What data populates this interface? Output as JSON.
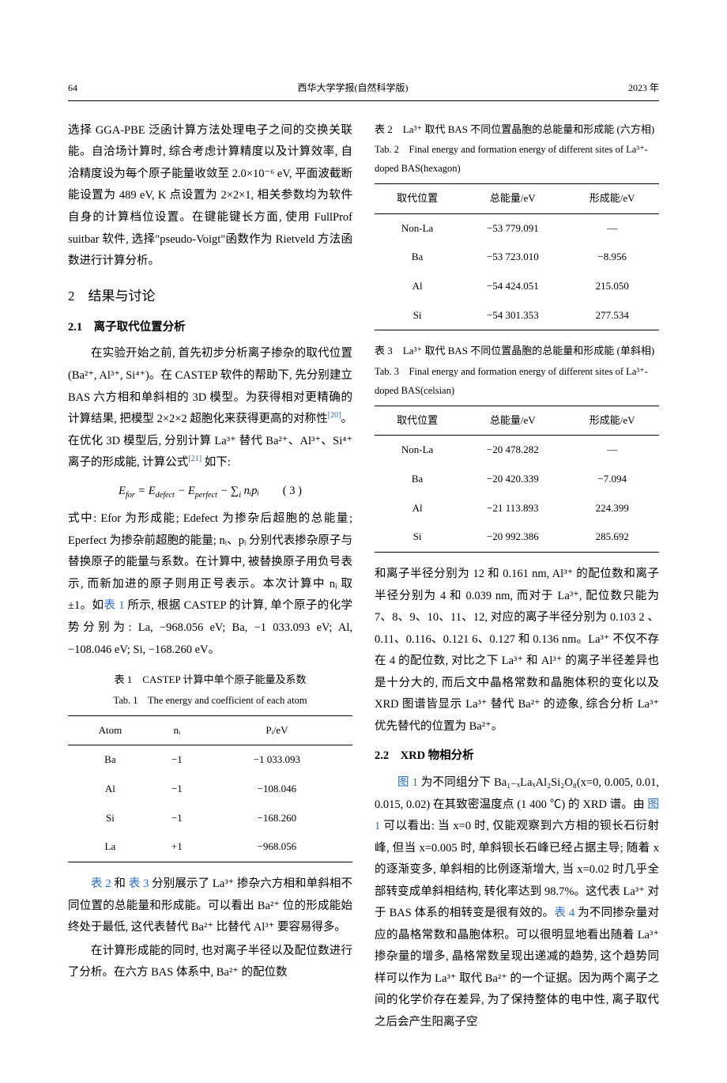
{
  "header": {
    "page_no": "64",
    "journal": "西华大学学报(自然科学版)",
    "year": "2023 年"
  },
  "left_col": {
    "p1": "选择 GGA-PBE 泛函计算方法处理电子之间的交换关联能。自洽场计算时, 综合考虑计算精度以及计算效率, 自洽精度设为每个原子能量收敛至 2.0×10⁻⁶ eV, 平面波截断能设置为 489 eV, K 点设置为 2×2×1, 相关参数均为软件自身的计算档位设置。在键能键长方面, 使用 FullProf suitbar 软件, 选择\"pseudo-Voigt\"函数作为 Rietveld 方法函数进行计算分析。",
    "sec2": "2　结果与讨论",
    "sec21": "2.1　离子取代位置分析",
    "p2a": "在实验开始之前, 首先初步分析离子掺杂的取代位置 (Ba²⁺, Al³⁺, Si⁴⁺)。在 CASTEP 软件的帮助下, 先分别建立 BAS 六方相和单斜相的 3D 模型。为获得相对更精确的计算结果, 把模型 2×2×2 超胞化来获得更高的对称性",
    "cite20": "[20]",
    "p2b": "。在优化 3D 模型后, 分别计算 La³⁺ 替代 Ba²⁺、Al³⁺、Si⁴⁺ 离子的形成能, 计算公式",
    "cite21": "[21]",
    "p2c": " 如下:",
    "eq_lhs": "E",
    "eq_sub_for": "for",
    "eq_eq": " = E",
    "eq_sub_defect": "defect",
    "eq_minus1": " − E",
    "eq_sub_perfect": "perfect",
    "eq_minus2": " − ∑",
    "eq_sub_i": "i",
    "eq_npi": " nᵢpᵢ",
    "eq_num": "( 3 )",
    "p3": "式中: Efor 为形成能; Edefect 为掺杂后超胞的总能量; Eperfect 为掺杂前超胞的能量; nᵢ、pᵢ 分别代表掺杂原子与替换原子的能量与系数。在计算中, 被替换原子用负号表示, 而新加进的原子则用正号表示。本次计算中 nᵢ 取 ±1。如",
    "tab1link": "表 1",
    "p3b": " 所示, 根据 CASTEP 的计算, 单个原子的化学势分别为: La,  −968.056 eV; Ba, −1 033.093 eV; Al, −108.046 eV; Si,  −168.260 eV。",
    "p4a": "",
    "tab2link": "表 2",
    "p4and": " 和 ",
    "tab3link": "表 3",
    "p4b": " 分别展示了 La³⁺ 掺杂六方相和单斜相不同位置的总能量和形成能。可以看出 Ba²⁺ 位的形成能始终处于最低, 这代表替代 Ba²⁺ 比替代 Al³⁺ 要容易得多。",
    "p5": "在计算形成能的同时, 也对离子半径以及配位数进行了分析。在六方 BAS 体系中, Ba²⁺ 的配位数"
  },
  "right_col": {
    "p1": "和离子半径分别为 12 和 0.161 nm, Al³⁺ 的配位数和离子半径分别为 4 和 0.039 nm, 而对于 La³⁺, 配位数只能为 7、8、9、10、11、12, 对应的离子半径分别为 0.103 2 、0.11、0.116、0.121 6、0.127 和 0.136 nm。La³⁺ 不仅不存在 4 的配位数, 对比之下 La³⁺ 和 Al³⁺ 的离子半径差异也是十分大的, 而后文中晶格常数和晶胞体积的变化以及 XRD 图谱皆显示 La³⁺ 替代 Ba²⁺ 的迹象, 综合分析 La³⁺ 优先替代的位置为 Ba²⁺。",
    "sec22": "2.2　XRD 物相分析",
    "p2a": "",
    "fig1link_a": "图 1",
    "p2b": " 为不同组分下 Ba₁₋ₓLaₓAl₂Si₂O₈(x=0, 0.005, 0.01, 0.015, 0.02) 在其致密温度点 (1 400 ℃) 的 XRD 谱。由 ",
    "fig1link_b": "图 1",
    "p2c": " 可以看出: 当 x=0 时, 仅能观察到六方相的钡长石衍射峰, 但当 x=0.005 时, 单斜钡长石峰已经占据主导; 随着 x 的逐渐变多, 单斜相的比例逐渐增大, 当 x=0.02 时几乎全部转变成单斜相结构, 转化率达到 98.7%。这代表 La³⁺ 对于 BAS 体系的相转变是很有效的。",
    "tab4link": "表 4",
    "p2d": " 为不同掺杂量对应的晶格常数和晶胞体积。可以很明显地看出随着 La³⁺ 掺杂量的增多, 晶格常数呈现出递减的趋势, 这个趋势同样可以作为 La³⁺ 取代 Ba²⁺ 的一个证据。因为两个离子之间的化学价存在差异, 为了保持整体的电中性, 离子取代之后会产生阳离子空"
  },
  "table1": {
    "title_cn": "表 1　CASTEP 计算中单个原子能量及系数",
    "title_en": "Tab. 1　The energy and coefficient of each atom",
    "cols": [
      "Atom",
      "nᵢ",
      "Pᵢ/eV"
    ],
    "rows": [
      [
        "Ba",
        "−1",
        "−1 033.093"
      ],
      [
        "Al",
        "−1",
        "−108.046"
      ],
      [
        "Si",
        "−1",
        "−168.260"
      ],
      [
        "La",
        "+1",
        "−968.056"
      ]
    ]
  },
  "table2": {
    "title_cn": "表 2　La³⁺ 取代 BAS 不同位置晶胞的总能量和形成能 (六方相)",
    "title_en": "Tab. 2　Final energy and formation energy of different sites of La³⁺-doped BAS(hexagon)",
    "cols": [
      "取代位置",
      "总能量/eV",
      "形成能/eV"
    ],
    "rows": [
      [
        "Non-La",
        "−53 779.091",
        "—"
      ],
      [
        "Ba",
        "−53 723.010",
        "−8.956"
      ],
      [
        "Al",
        "−54 424.051",
        "215.050"
      ],
      [
        "Si",
        "−54 301.353",
        "277.534"
      ]
    ]
  },
  "table3": {
    "title_cn": "表 3　La³⁺ 取代 BAS 不同位置晶胞的总能量和形成能 (单斜相)",
    "title_en": "Tab. 3　Final energy and formation energy of different sites of La³⁺-doped BAS(celsian)",
    "cols": [
      "取代位置",
      "总能量/eV",
      "形成能/eV"
    ],
    "rows": [
      [
        "Non-La",
        "−20 478.282",
        "—"
      ],
      [
        "Ba",
        "−20 420.339",
        "−7.094"
      ],
      [
        "Al",
        "−21 113.893",
        "224.399"
      ],
      [
        "Si",
        "−20 992.386",
        "285.692"
      ]
    ]
  }
}
